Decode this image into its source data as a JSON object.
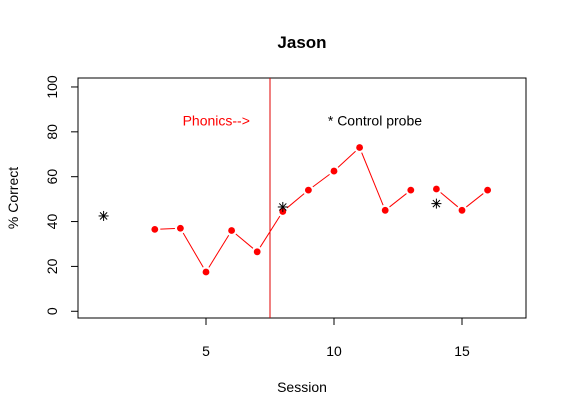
{
  "chart_data": {
    "type": "line",
    "title": "Jason",
    "xlabel": "Session",
    "ylabel": "% Correct",
    "xlim": [
      0,
      17.5
    ],
    "ylim": [
      -3,
      104
    ],
    "x_ticks": [
      5,
      10,
      15
    ],
    "y_ticks": [
      0,
      20,
      40,
      60,
      80,
      100
    ],
    "series": [
      {
        "kind": "line-points",
        "color": "#ff0000",
        "segments": [
          {
            "x": [
              3,
              4,
              5,
              6,
              7,
              8,
              9,
              10,
              11,
              12,
              13
            ],
            "y": [
              36.5,
              37,
              17.5,
              36,
              26.5,
              44.5,
              54,
              62.5,
              73,
              45,
              54
            ]
          },
          {
            "x": [
              14,
              15,
              16
            ],
            "y": [
              54.5,
              45,
              54
            ]
          }
        ]
      },
      {
        "kind": "asterisk-points",
        "color": "#000000",
        "x": [
          1,
          8,
          14
        ],
        "y": [
          42.5,
          46.5,
          48
        ]
      }
    ],
    "phase_line": {
      "x": 7.5,
      "color": "#e00000"
    },
    "annotations": [
      {
        "text": "Phonics-->",
        "x": 5.4,
        "y": 85,
        "color": "#ff0000"
      },
      {
        "text": "* Control probe",
        "x": 11.6,
        "y": 85,
        "color": "#000000"
      }
    ]
  }
}
